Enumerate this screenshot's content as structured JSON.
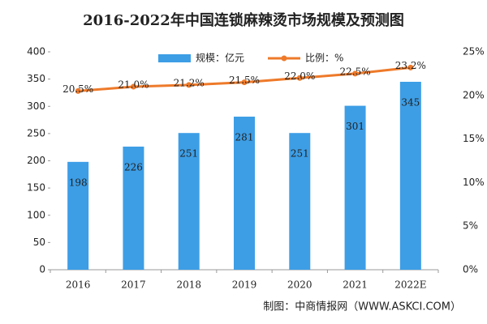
{
  "chart_data": {
    "type": "bar",
    "title": "2016-2022年中国连锁麻辣烫市场规模及预测图",
    "categories": [
      "2016",
      "2017",
      "2018",
      "2019",
      "2020",
      "2021",
      "2022E"
    ],
    "series": [
      {
        "name": "规模：亿元",
        "type": "bar",
        "color": "#3d9ee6",
        "values": [
          198,
          226,
          251,
          281,
          251,
          301,
          345
        ]
      },
      {
        "name": "比例：%",
        "type": "line",
        "axis": "y2",
        "color": "#ee7a2a",
        "values": [
          20.5,
          21.0,
          21.2,
          21.5,
          22.0,
          22.5,
          23.2
        ],
        "value_labels": [
          "20.5%",
          "21.0%",
          "21.2%",
          "21.5%",
          "22.0%",
          "22.5%",
          "23.2%"
        ]
      }
    ],
    "ylim": [
      0,
      400
    ],
    "yticks": [
      0,
      50,
      100,
      150,
      200,
      250,
      300,
      350,
      400
    ],
    "y2lim": [
      0,
      25
    ],
    "y2ticks": [
      {
        "value": 0,
        "label": "0%"
      },
      {
        "value": 5,
        "label": "5%"
      },
      {
        "value": 10,
        "label": "10%"
      },
      {
        "value": 15,
        "label": "15%"
      },
      {
        "value": 20,
        "label": "20%"
      },
      {
        "value": 25,
        "label": "25%"
      }
    ],
    "grid": false,
    "source": "制图：中商情报网（WWW.ASKCI.COM）"
  }
}
